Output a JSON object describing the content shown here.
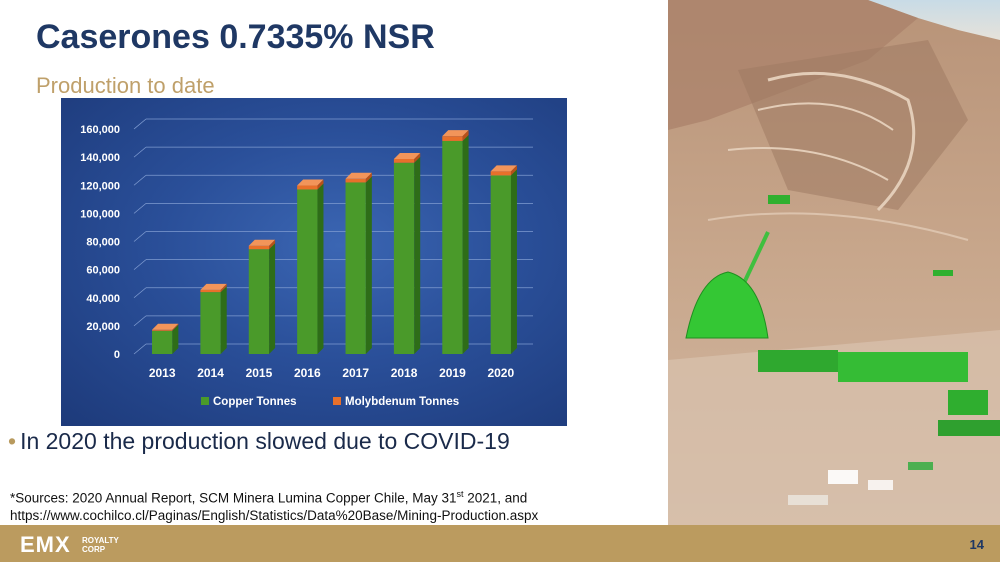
{
  "title": "Caserones 0.7335% NSR",
  "subtitle": "Production to date",
  "bullet": "In 2020 the production slowed due to COVID-19",
  "sources": {
    "line1_pre": "*Sources: 2020 Annual Report, SCM Minera Lumina Copper Chile, May 31",
    "line1_sup": "st",
    "line1_post": " 2021, and",
    "line2": "https://www.cochilco.cl/Paginas/English/Statistics/Data%20Base/Mining-Production.aspx"
  },
  "footer": {
    "logo": "EMX",
    "logo_sub_1": "ROYALTY",
    "logo_sub_2": "CORP",
    "page_number": "14"
  },
  "colors": {
    "copper": "#4e9a2a",
    "molybdenum": "#e8702a",
    "title": "#1f3864",
    "accent": "#bb9b5f"
  },
  "chart_data": {
    "type": "bar",
    "categories": [
      "2013",
      "2014",
      "2015",
      "2016",
      "2017",
      "2018",
      "2019",
      "2020"
    ],
    "series": [
      {
        "name": "Copper Tonnes",
        "values": [
          16500,
          44000,
          74500,
          117000,
          122000,
          136000,
          151500,
          127000
        ]
      },
      {
        "name": "Molybdenum Tonnes",
        "values": [
          750,
          1600,
          2500,
          2800,
          2600,
          2700,
          3400,
          2900
        ]
      }
    ],
    "y_ticks": [
      "0",
      "20,000",
      "40,000",
      "60,000",
      "80,000",
      "100,000",
      "120,000",
      "140,000",
      "160,000"
    ],
    "ylim": [
      0,
      160000
    ],
    "grid": true,
    "legend_position": "bottom"
  }
}
